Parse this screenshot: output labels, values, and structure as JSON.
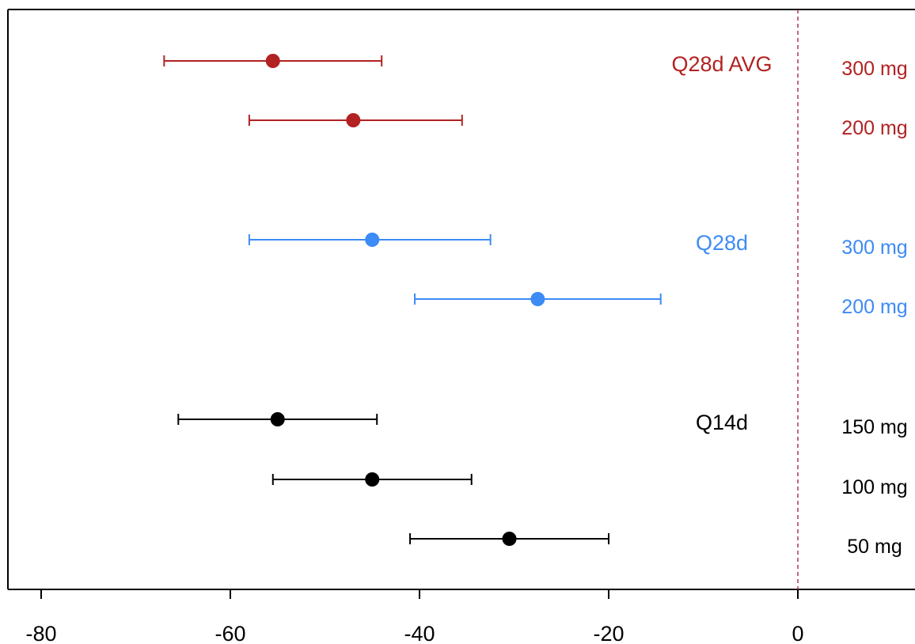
{
  "chart_data": {
    "type": "forest",
    "xlim": [
      -80,
      0
    ],
    "x_ticks": [
      "-80",
      "-60",
      "-40",
      "-20",
      "0"
    ],
    "reference_line_x": 0,
    "groups": [
      {
        "label": "Q28d AVG",
        "color": "#b22222",
        "rows": [
          {
            "dose": "300 mg",
            "estimate": -55.5,
            "lower": -67,
            "upper": -44
          },
          {
            "dose": "200 mg",
            "estimate": -47,
            "lower": -58,
            "upper": -35.5
          }
        ]
      },
      {
        "label": "Q28d",
        "color": "#3d8bf5",
        "rows": [
          {
            "dose": "300 mg",
            "estimate": -45,
            "lower": -58,
            "upper": -32.5
          },
          {
            "dose": "200 mg",
            "estimate": -27.5,
            "lower": -40.5,
            "upper": -14.5
          }
        ]
      },
      {
        "label": "Q14d",
        "color": "#000000",
        "rows": [
          {
            "dose": "150 mg",
            "estimate": -55,
            "lower": -65.5,
            "upper": -44.5
          },
          {
            "dose": "100 mg",
            "estimate": -45,
            "lower": -55.5,
            "upper": -34.5
          },
          {
            "dose": "50 mg",
            "estimate": -30.5,
            "lower": -41,
            "upper": -20
          }
        ]
      }
    ]
  }
}
